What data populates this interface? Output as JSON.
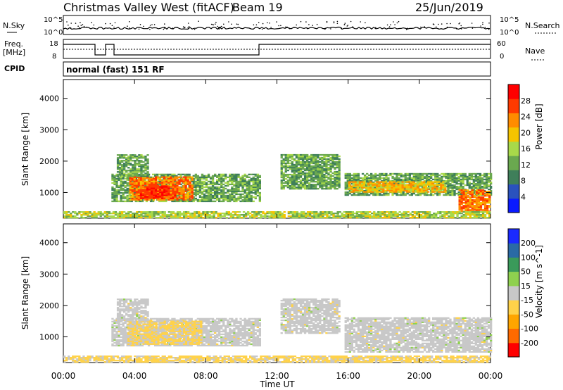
{
  "header": {
    "station": "Christmas Valley West (fitACF)",
    "beam": "Beam 19",
    "date": "25/Jun/2019"
  },
  "strip": {
    "nsky_label": "N.Sky",
    "nsky_hi": "10^5",
    "nsky_lo": "10^0",
    "nsearch_label": "N.Search",
    "freq_label": "Freq.",
    "freq_unit": "[MHz]",
    "freq_hi": "18",
    "freq_lo": "8",
    "nave_label": "Nave",
    "nave_hi": "60",
    "nave_lo": "0",
    "cpid_label": "CPID",
    "cpid_value": "normal (fast) 151 RF"
  },
  "colors": {
    "power": [
      "#0a1aff",
      "#2a52be",
      "#3f7f5a",
      "#6aa84f",
      "#a8d94a",
      "#f5c400",
      "#ff8c00",
      "#ff3a00",
      "#ff0000"
    ],
    "velocity": [
      "#ff0000",
      "#ff6a00",
      "#ffa500",
      "#ffd24a",
      "#c8c8c8",
      "#8fd14f",
      "#3a9a5a",
      "#2a6aa5",
      "#1a2aff"
    ]
  },
  "chart_data": [
    {
      "type": "heatmap",
      "panel": "power",
      "xlabel": "",
      "ylabel": "Slant Range [km]",
      "colorbar_label": "Power [dB]",
      "colorbar_ticks": [
        "4",
        "8",
        "12",
        "16",
        "20",
        "24",
        "28"
      ],
      "x_ticks": [
        "00:00",
        "04:00",
        "08:00",
        "12:00",
        "16:00",
        "20:00",
        "00:00"
      ],
      "y_ticks": [
        "1000",
        "2000",
        "3000",
        "4000"
      ],
      "xlim_hours": [
        0,
        24
      ],
      "ylim_km": [
        180,
        4600
      ],
      "regions": [
        {
          "t0": 2.7,
          "t1": 11.0,
          "r0": 700,
          "r1": 1600,
          "value_db": 12
        },
        {
          "t0": 3.7,
          "t1": 7.3,
          "r0": 750,
          "r1": 1500,
          "value_db": 24
        },
        {
          "t0": 4.3,
          "t1": 6.3,
          "r0": 800,
          "r1": 1200,
          "value_db": 28
        },
        {
          "t0": 3.0,
          "t1": 4.8,
          "r0": 1500,
          "r1": 2200,
          "value_db": 12
        },
        {
          "t0": 15.8,
          "t1": 24.0,
          "r0": 900,
          "r1": 1600,
          "value_db": 12
        },
        {
          "t0": 16.0,
          "t1": 21.5,
          "r0": 1000,
          "r1": 1350,
          "value_db": 20
        },
        {
          "t0": 22.2,
          "t1": 24.0,
          "r0": 380,
          "r1": 1100,
          "value_db": 24
        },
        {
          "t0": 12.2,
          "t1": 15.5,
          "r0": 1100,
          "r1": 2200,
          "value_db": 12
        },
        {
          "t0": 0.0,
          "t1": 24.0,
          "r0": 180,
          "r1": 400,
          "value_db": 16
        }
      ]
    },
    {
      "type": "heatmap",
      "panel": "velocity",
      "xlabel": "Time UT",
      "ylabel": "Slant Range [km]",
      "colorbar_label": "Velocity [m s^-1]",
      "colorbar_ticks": [
        "-200",
        "-100",
        "-50",
        "-15",
        "15",
        "50",
        "100",
        "200"
      ],
      "x_ticks": [
        "00:00",
        "04:00",
        "08:00",
        "12:00",
        "16:00",
        "20:00",
        "00:00"
      ],
      "y_ticks": [
        "1000",
        "2000",
        "3000",
        "4000"
      ],
      "xlim_hours": [
        0,
        24
      ],
      "ylim_km": [
        180,
        4600
      ],
      "regions": [
        {
          "t0": 2.7,
          "t1": 11.0,
          "r0": 700,
          "r1": 1600,
          "value_ms": 0
        },
        {
          "t0": 3.6,
          "t1": 7.8,
          "r0": 750,
          "r1": 1500,
          "value_ms": -40
        },
        {
          "t0": 3.0,
          "t1": 4.8,
          "r0": 1500,
          "r1": 2200,
          "value_ms": 0
        },
        {
          "t0": 15.8,
          "t1": 24.0,
          "r0": 500,
          "r1": 1600,
          "value_ms": 0
        },
        {
          "t0": 12.2,
          "t1": 15.5,
          "r0": 1100,
          "r1": 2200,
          "value_ms": 0
        },
        {
          "t0": 0.0,
          "t1": 24.0,
          "r0": 180,
          "r1": 400,
          "value_ms": -40
        }
      ]
    }
  ]
}
